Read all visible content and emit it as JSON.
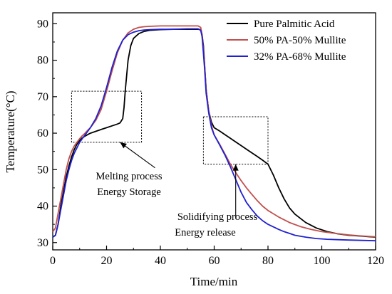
{
  "chart_data": {
    "type": "line",
    "xlabel": "Time/min",
    "ylabel": "Temperature(°C)",
    "xlim": [
      0,
      120
    ],
    "ylim": [
      28,
      93
    ],
    "xticks": [
      0,
      20,
      40,
      60,
      80,
      100,
      120
    ],
    "yticks": [
      30,
      40,
      50,
      60,
      70,
      80,
      90
    ],
    "grid": false,
    "legend_position": "top-right",
    "series": [
      {
        "name": "Pure Palmitic Acid",
        "color": "#000000",
        "x": [
          0,
          1,
          2,
          3,
          4,
          5,
          6,
          7,
          8,
          9,
          10,
          11,
          12,
          13,
          14,
          16,
          18,
          20,
          22,
          24,
          25,
          26,
          26.5,
          27,
          27.5,
          28,
          29,
          30,
          32,
          34,
          36,
          40,
          45,
          50,
          54,
          55,
          55.5,
          56,
          56.5,
          57,
          58,
          59,
          60,
          62,
          64,
          66,
          68,
          70,
          72,
          74,
          76,
          78,
          80,
          82,
          84,
          86,
          88,
          90,
          94,
          98,
          102,
          106,
          110,
          114,
          118,
          120
        ],
        "y": [
          31.5,
          32,
          35,
          40,
          44,
          48,
          51,
          53.5,
          55.5,
          57,
          58,
          58.7,
          59.2,
          59.6,
          60,
          60.5,
          61,
          61.5,
          62,
          62.5,
          62.8,
          64,
          67,
          72,
          76,
          80,
          84,
          86,
          87.3,
          87.9,
          88.2,
          88.4,
          88.5,
          88.5,
          88.5,
          88.4,
          87,
          84,
          78,
          72,
          66,
          63,
          61.5,
          60.6,
          59.6,
          58.6,
          57.6,
          56.6,
          55.6,
          54.6,
          53.6,
          52.6,
          51.5,
          48.5,
          45,
          42,
          39.5,
          37.8,
          35.5,
          34,
          33,
          32.4,
          32,
          31.8,
          31.6,
          31.5
        ]
      },
      {
        "name": "50% PA-50% Mullite",
        "color": "#c0504d",
        "x": [
          0,
          1,
          2,
          3,
          4,
          5,
          6,
          7,
          8,
          9,
          10,
          11,
          12,
          13,
          14,
          16,
          18,
          20,
          22,
          24,
          26,
          28,
          30,
          32,
          34,
          36,
          40,
          45,
          50,
          54,
          55,
          55.5,
          56,
          56.5,
          57,
          58,
          59,
          60,
          62,
          64,
          66,
          68,
          70,
          72,
          74,
          76,
          78,
          80,
          84,
          88,
          92,
          96,
          100,
          105,
          110,
          115,
          120
        ],
        "y": [
          33,
          34,
          38,
          42,
          46,
          50,
          53,
          55,
          56.5,
          57.5,
          58.5,
          59.3,
          60,
          60.8,
          61.5,
          63.5,
          66.5,
          71.5,
          77,
          82,
          85.5,
          87.5,
          88.5,
          89,
          89.2,
          89.3,
          89.4,
          89.4,
          89.4,
          89.4,
          89,
          87,
          83,
          78,
          72,
          66,
          62,
          59.5,
          57,
          54.3,
          51.5,
          49.2,
          47,
          45,
          43.2,
          41.5,
          40,
          38.8,
          37,
          35.5,
          34.4,
          33.6,
          33,
          32.5,
          32.1,
          31.8,
          31.6
        ]
      },
      {
        "name": "32% PA-68% Mullite",
        "color": "#2020d0",
        "x": [
          0,
          1,
          2,
          3,
          4,
          5,
          6,
          7,
          8,
          9,
          10,
          11,
          12,
          13,
          14,
          16,
          18,
          20,
          22,
          24,
          26,
          28,
          30,
          32,
          34,
          36,
          40,
          45,
          50,
          54,
          55,
          55.5,
          56,
          56.5,
          57,
          58,
          59,
          60,
          62,
          64,
          66,
          68,
          70,
          72,
          74,
          76,
          78,
          80,
          82,
          84,
          86,
          88,
          90,
          94,
          98,
          102,
          106,
          110,
          115,
          120
        ],
        "y": [
          31.5,
          32,
          35,
          39,
          43,
          47,
          50,
          52.5,
          54.5,
          56,
          57.5,
          58.5,
          59.5,
          60.5,
          61.5,
          64,
          67.5,
          72.5,
          78,
          82.5,
          85.5,
          87,
          87.7,
          88.1,
          88.3,
          88.4,
          88.5,
          88.5,
          88.6,
          88.6,
          88.2,
          86.5,
          82,
          77,
          71,
          65.5,
          61.5,
          59.5,
          56.8,
          54,
          50.8,
          47.3,
          43.8,
          41,
          39,
          37.3,
          36,
          35,
          34.3,
          33.6,
          33,
          32.5,
          32,
          31.5,
          31.1,
          30.9,
          30.8,
          30.7,
          30.6,
          30.5
        ]
      }
    ],
    "annotations": {
      "melting_label_1": "Melting process",
      "melting_label_2": "Energy Storage",
      "solid_label_1": "Solidifying  process",
      "solid_label_2": "Energy release"
    },
    "dashed_boxes": [
      {
        "name": "melting-box",
        "x": [
          7,
          33
        ],
        "y": [
          57.5,
          71.5
        ]
      },
      {
        "name": "solidifying-box",
        "x": [
          56,
          80
        ],
        "y": [
          51.5,
          64.5
        ]
      }
    ],
    "annotation_arrows": [
      {
        "name": "melting-arrow",
        "from": [
          38,
          50.5
        ],
        "to": [
          25,
          57.5
        ]
      },
      {
        "name": "solidifying-arrow",
        "from": [
          68,
          36.5
        ],
        "to": [
          68,
          51.5
        ]
      }
    ]
  }
}
